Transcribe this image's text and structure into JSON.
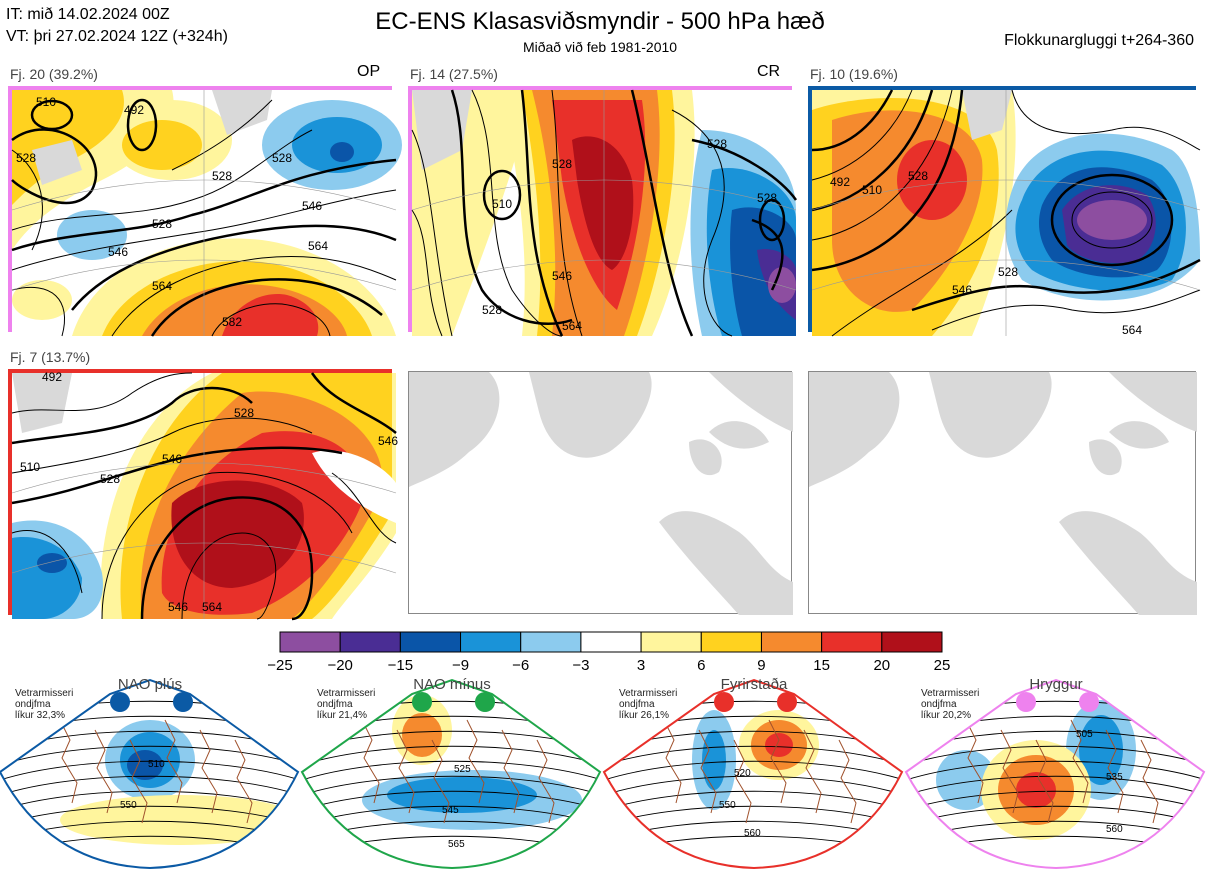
{
  "header": {
    "it": "IT: mið 14.02.2024 00Z",
    "vt": "VT: þri 27.02.2024 12Z  (+324h)",
    "title": "EC-ENS Klasasviðsmyndir - 500 hPa hæð",
    "subtitle": "Miðað við feb 1981-2010",
    "window": "Flokkunargluggi t+264-360"
  },
  "clusters": [
    {
      "label": "Fj. 20 (39.2%)",
      "code": "OP",
      "frame_color": "#ee82ee"
    },
    {
      "label": "Fj. 14 (27.5%)",
      "code": "CR",
      "frame_color": "#ee82ee"
    },
    {
      "label": "Fj. 10 (19.6%)",
      "code": "",
      "frame_color": "#0b5aa5"
    },
    {
      "label": "Fj. 7 (13.7%)",
      "code": "",
      "frame_color": "#e8302a"
    }
  ],
  "contour_labels": {
    "c1": [
      "510",
      "492",
      "528",
      "528",
      "546",
      "528",
      "546",
      "564",
      "564",
      "582",
      "528"
    ],
    "c2": [
      "510",
      "528",
      "528",
      "528",
      "546",
      "528",
      "564"
    ],
    "c3": [
      "492",
      "510",
      "528",
      "528",
      "546",
      "564"
    ],
    "c4": [
      "492",
      "510",
      "528",
      "546",
      "528",
      "546",
      "564",
      "546"
    ]
  },
  "colorbar": {
    "ticks": [
      "−25",
      "−20",
      "−15",
      "−9",
      "−6",
      "−3",
      "3",
      "6",
      "9",
      "15",
      "20",
      "25"
    ],
    "colors": [
      "#8d4ea0",
      "#4a2d94",
      "#0a55a8",
      "#1a93d8",
      "#8ccbee",
      "#ffffff",
      "#fff59d",
      "#ffd21f",
      "#f58a2e",
      "#e8302a",
      "#b0101a"
    ]
  },
  "regimes": [
    {
      "title": "NAO plús",
      "note1": "Vetrarmisseri",
      "note2": "ondjfma",
      "note3": "líkur 32,3%",
      "color": "#0b5aa5",
      "labels": [
        "510",
        "550"
      ]
    },
    {
      "title": "NAO mínus",
      "note1": "Vetrarmisseri",
      "note2": "ondjfma",
      "note3": "líkur 21,4%",
      "color": "#1fa64a",
      "labels": [
        "525",
        "545",
        "565"
      ]
    },
    {
      "title": "Fyrirstaða",
      "note1": "Vetrarmisseri",
      "note2": "ondjfma",
      "note3": "líkur 26,1%",
      "color": "#e8302a",
      "labels": [
        "520",
        "550",
        "560"
      ]
    },
    {
      "title": "Hryggur",
      "note1": "Vetrarmisseri",
      "note2": "ondjfma",
      "note3": "líkur 20,2%",
      "color": "#ee82ee",
      "labels": [
        "505",
        "535",
        "560"
      ]
    }
  ]
}
